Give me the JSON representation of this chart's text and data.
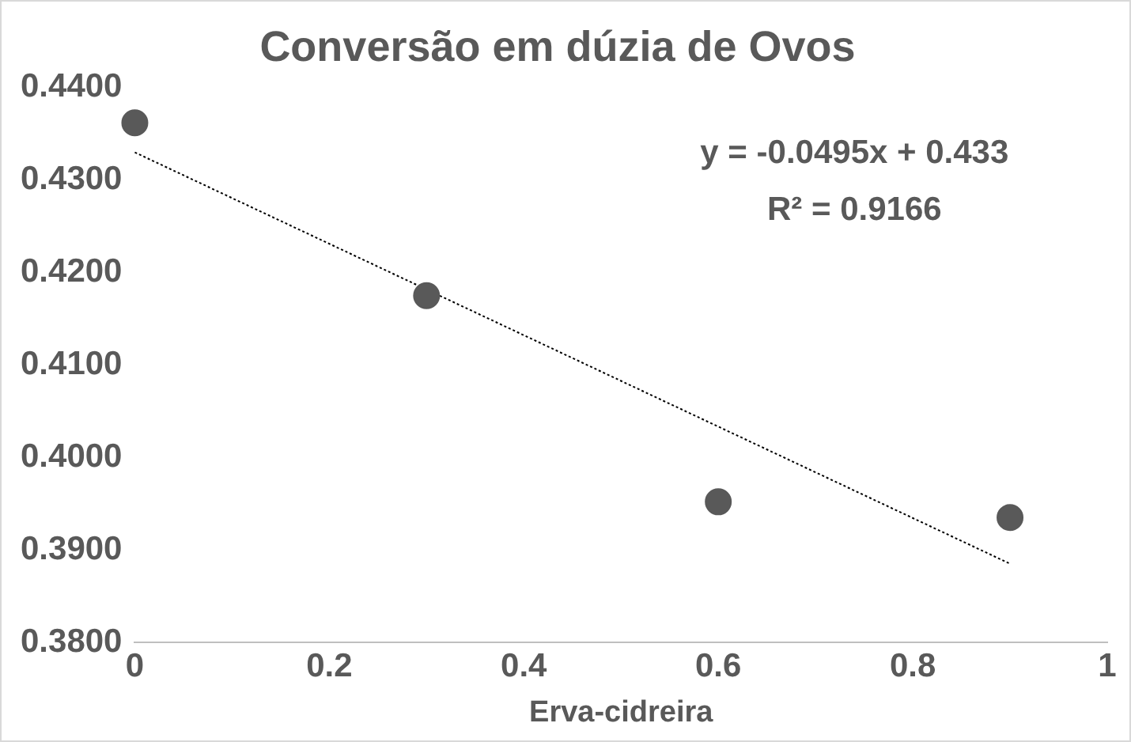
{
  "chart_data": {
    "type": "scatter",
    "title": "Conversão em dúzia de Ovos",
    "xlabel": "Erva-cidreira",
    "series": [
      {
        "type": "scatter",
        "color": "#595959",
        "x": [
          0,
          0.3,
          0.6,
          0.9
        ],
        "values": [
          0.4362,
          0.4175,
          0.3952,
          0.3935
        ],
        "marker": "circle"
      },
      {
        "type": "line",
        "color": "#000000",
        "x": [
          0,
          0.9
        ],
        "values": [
          0.433,
          0.3885
        ],
        "marker": "none",
        "line_style": "dotted"
      }
    ],
    "xlim": [
      0,
      1
    ],
    "xticks": [
      0,
      0.2,
      0.4,
      0.6,
      0.8,
      1
    ],
    "ylim": [
      0.38,
      0.44
    ],
    "yticks": [
      {
        "value": 0.38,
        "label": "0.3800"
      },
      {
        "value": 0.39,
        "label": "0.3900"
      },
      {
        "value": 0.4,
        "label": "0.4000"
      },
      {
        "value": 0.41,
        "label": "0.4100"
      },
      {
        "value": 0.42,
        "label": "0.4200"
      },
      {
        "value": 0.43,
        "label": "0.4300"
      },
      {
        "value": 0.44,
        "label": "0.4400"
      }
    ],
    "annotations": [
      "y = -0.0495x + 0.433",
      "R² = 0.9166"
    ],
    "grid": false,
    "legend": false
  }
}
